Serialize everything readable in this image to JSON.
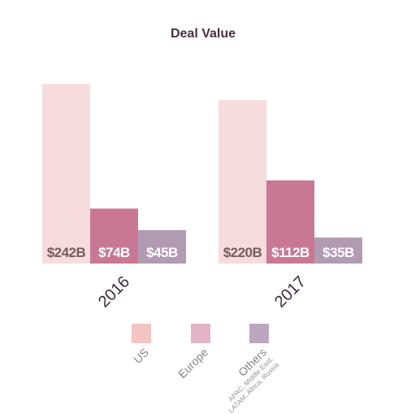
{
  "chart_data": {
    "type": "bar",
    "title": "Deal Value",
    "categories": [
      "2016",
      "2017"
    ],
    "series": [
      {
        "name": "US",
        "values": [
          242,
          220
        ],
        "labels": [
          "$242B",
          "$220B"
        ],
        "color": "#f6dcdc",
        "label_color": "#7a5a5e"
      },
      {
        "name": "Europe",
        "values": [
          74,
          112
        ],
        "labels": [
          "$74B",
          "$112B"
        ],
        "color": "#c97893",
        "label_color": "#ffffff"
      },
      {
        "name": "Others",
        "values": [
          45,
          35
        ],
        "labels": [
          "$45B",
          "$35B"
        ],
        "color": "#b39ab3",
        "label_color": "#ffffff"
      }
    ],
    "ylim": [
      0,
      242
    ],
    "grid": false,
    "legend": {
      "placement": "bottom",
      "items": [
        {
          "name": "US",
          "color": "#f2c4c4"
        },
        {
          "name": "Europe",
          "color": "#e3b3c6"
        },
        {
          "name": "Others",
          "color": "#bca6c0",
          "sublabel_lines": [
            "APAC, Middle East,",
            "LATAM, Africa, Russia"
          ]
        }
      ]
    }
  }
}
